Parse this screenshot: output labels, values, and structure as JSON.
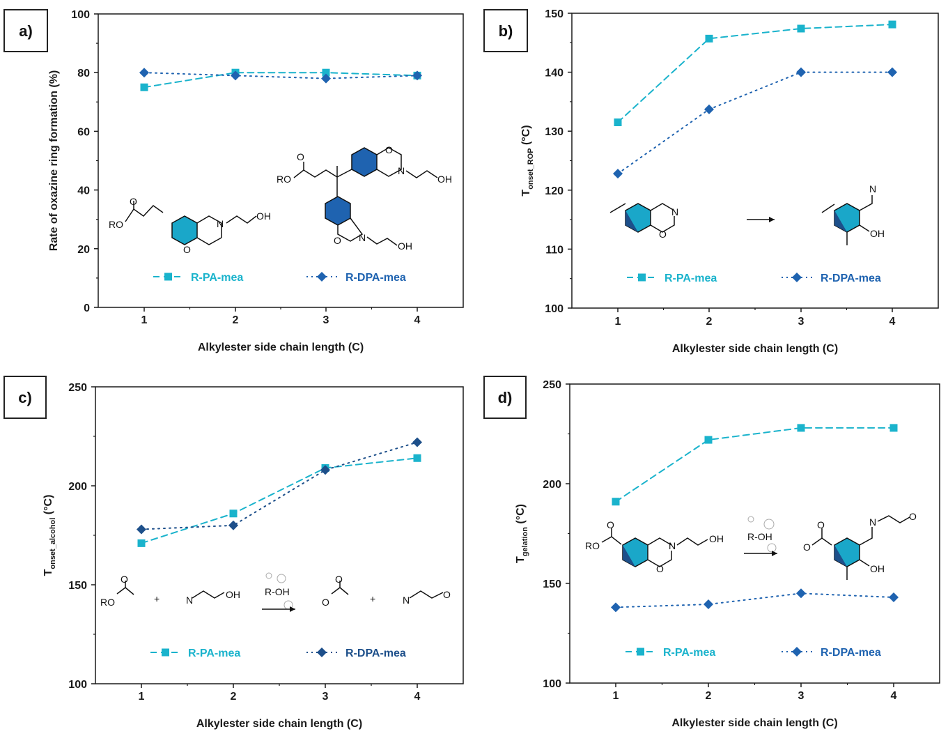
{
  "colors": {
    "pa": "#1ab3cc",
    "dpa": "#1f63b0",
    "dpa_dark": "#1d4f8a",
    "axis": "#1a1a1a",
    "ring_blue": "#1f63b0",
    "ring_teal": "#1aa7c9"
  },
  "chart_data": [
    {
      "type": "line",
      "panel": "a)",
      "ylabel": "Rate of oxazine ring formation (%)",
      "xlabel": "Alkylester side chain length (C)",
      "x": [
        1,
        2,
        3,
        4
      ],
      "x_ticks": [
        "1",
        "2",
        "3",
        "4"
      ],
      "y_ticks": [
        "0",
        "20",
        "40",
        "60",
        "80",
        "100"
      ],
      "ylim": [
        0,
        100
      ],
      "series": [
        {
          "name": "R-PA-mea",
          "marker": "square",
          "style": "dashed",
          "values": [
            75,
            80,
            80,
            79
          ]
        },
        {
          "name": "R-DPA-mea",
          "marker": "diamond",
          "style": "dotted",
          "values": [
            80,
            79,
            78,
            79
          ]
        }
      ],
      "structures": [
        {
          "labels": [
            "RO",
            "O",
            "N",
            "OH",
            "O"
          ]
        },
        {
          "labels": [
            "RO",
            "O",
            "O",
            "N",
            "OH",
            "O",
            "N",
            "OH"
          ]
        }
      ]
    },
    {
      "type": "line",
      "panel": "b)",
      "ylabel_main": "T",
      "ylabel_sub": "onset_ROP",
      "ylabel_unit": " (°C)",
      "xlabel": "Alkylester side chain length (C)",
      "x": [
        1,
        2,
        3,
        4
      ],
      "x_ticks": [
        "1",
        "2",
        "3",
        "4"
      ],
      "y_ticks": [
        "100",
        "110",
        "120",
        "130",
        "140",
        "150"
      ],
      "ylim": [
        100,
        150
      ],
      "series": [
        {
          "name": "R-PA-mea",
          "marker": "square",
          "style": "dashed",
          "values": [
            131.5,
            145.7,
            147.4,
            148.1
          ]
        },
        {
          "name": "R-DPA-mea",
          "marker": "diamond",
          "style": "dotted",
          "values": [
            122.8,
            133.7,
            140,
            140
          ]
        }
      ],
      "structures": [
        {
          "labels": [
            "N",
            "O"
          ]
        },
        {
          "labels": [
            "N",
            "OH"
          ]
        }
      ]
    },
    {
      "type": "line",
      "panel": "c)",
      "ylabel_main": "T",
      "ylabel_sub": "onset_alcohol",
      "ylabel_unit": " (°C)",
      "xlabel": "Alkylester side chain length (C)",
      "x": [
        1,
        2,
        3,
        4
      ],
      "x_ticks": [
        "1",
        "2",
        "3",
        "4"
      ],
      "y_ticks": [
        "100",
        "150",
        "200",
        "250"
      ],
      "ylim": [
        100,
        250
      ],
      "series": [
        {
          "name": "R-PA-mea",
          "marker": "square",
          "style": "dashed",
          "values": [
            171,
            186,
            209,
            214
          ]
        },
        {
          "name": "R-DPA-mea",
          "marker": "diamond",
          "style": "dotted",
          "values": [
            178,
            180,
            208,
            222
          ]
        }
      ],
      "structures": [
        {
          "labels": [
            "RO",
            "O",
            "+",
            "N",
            "OH",
            "R-OH",
            "O",
            "O",
            "+",
            "N",
            "O"
          ]
        }
      ]
    },
    {
      "type": "line",
      "panel": "d)",
      "ylabel_main": "T",
      "ylabel_sub": "gelation",
      "ylabel_unit": " (°C)",
      "xlabel": "Alkylester side chain length (C)",
      "x": [
        1,
        2,
        3,
        4
      ],
      "x_ticks": [
        "1",
        "2",
        "3",
        "4"
      ],
      "y_ticks": [
        "100",
        "150",
        "200",
        "250"
      ],
      "ylim": [
        100,
        250
      ],
      "series": [
        {
          "name": "R-PA-mea",
          "marker": "square",
          "style": "dashed",
          "values": [
            191,
            222,
            228,
            228
          ]
        },
        {
          "name": "R-DPA-mea",
          "marker": "diamond",
          "style": "dotted",
          "values": [
            138,
            139.5,
            145,
            143
          ]
        }
      ],
      "structures": [
        {
          "labels": [
            "RO",
            "O",
            "N",
            "OH",
            "O",
            "R-OH",
            "O",
            "O",
            "N",
            "O",
            "OH"
          ]
        }
      ]
    }
  ]
}
